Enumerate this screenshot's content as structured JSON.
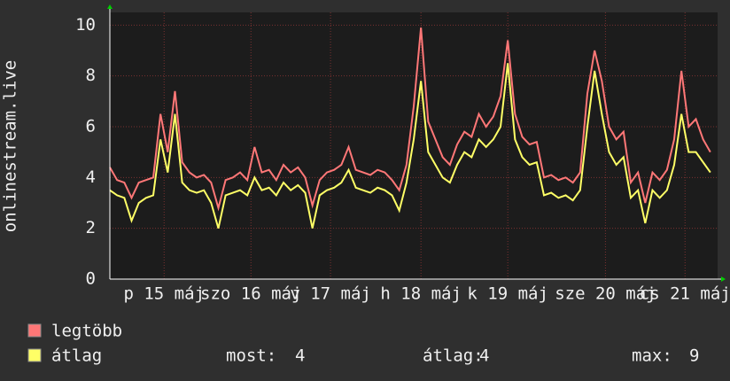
{
  "chart_data": {
    "type": "line",
    "y_label": "onlinestream.live",
    "x": [
      0,
      2,
      4,
      6,
      8,
      10,
      12,
      14,
      16,
      18,
      20,
      22,
      24,
      26,
      28,
      30,
      32,
      34,
      36,
      38,
      40,
      42,
      44,
      46,
      48,
      50,
      52,
      54,
      56,
      58,
      60,
      62,
      64,
      66,
      68,
      70,
      72,
      74,
      76,
      78,
      80,
      82,
      84,
      86,
      88,
      90,
      92,
      94,
      96,
      98,
      100,
      102,
      104,
      106,
      108,
      110,
      112,
      114,
      116,
      118,
      120,
      122,
      124,
      126,
      128,
      130,
      132,
      134,
      136,
      138,
      140,
      142,
      144,
      146,
      148,
      150,
      152,
      154,
      156,
      158,
      160,
      162,
      164,
      166
    ],
    "xlim": [
      0,
      168
    ],
    "xticks": [
      {
        "value": 15,
        "label": "p 15 máj"
      },
      {
        "value": 39,
        "label": "szo 16 máj"
      },
      {
        "value": 61,
        "label": "v 17 máj"
      },
      {
        "value": 86,
        "label": "h 18 máj"
      },
      {
        "value": 110,
        "label": "k 19 máj"
      },
      {
        "value": 137,
        "label": "sze 20 máj"
      },
      {
        "value": 159,
        "label": "cs 21 máj"
      }
    ],
    "ylim": [
      0,
      10.5
    ],
    "yticks": [
      0,
      2,
      4,
      6,
      8,
      10
    ],
    "grid": true,
    "series": [
      {
        "name": "legtöbb",
        "color": "#ff7777",
        "values": [
          4.4,
          3.9,
          3.8,
          3.2,
          3.8,
          3.9,
          4.0,
          6.5,
          5.0,
          7.4,
          4.6,
          4.2,
          4.0,
          4.1,
          3.8,
          2.8,
          3.9,
          4.0,
          4.2,
          3.9,
          5.2,
          4.2,
          4.3,
          3.9,
          4.5,
          4.2,
          4.4,
          4.0,
          2.9,
          3.9,
          4.2,
          4.3,
          4.5,
          5.2,
          4.3,
          4.2,
          4.1,
          4.3,
          4.2,
          3.9,
          3.5,
          4.5,
          6.8,
          9.9,
          6.2,
          5.5,
          4.8,
          4.5,
          5.3,
          5.8,
          5.6,
          6.5,
          6.0,
          6.4,
          7.2,
          9.4,
          6.5,
          5.6,
          5.3,
          5.4,
          4.0,
          4.1,
          3.9,
          4.0,
          3.8,
          4.2,
          7.3,
          9.0,
          7.8,
          6.0,
          5.5,
          5.8,
          3.8,
          4.2,
          3.0,
          4.2,
          3.9,
          4.3,
          5.5,
          8.2,
          6.0,
          6.3,
          5.5,
          5.0
        ]
      },
      {
        "name": "átlag",
        "color": "#ffff66",
        "values": [
          3.5,
          3.3,
          3.2,
          2.3,
          3.0,
          3.2,
          3.3,
          5.5,
          4.2,
          6.5,
          3.8,
          3.5,
          3.4,
          3.5,
          3.0,
          2.0,
          3.3,
          3.4,
          3.5,
          3.3,
          4.0,
          3.5,
          3.6,
          3.3,
          3.8,
          3.5,
          3.7,
          3.4,
          2.0,
          3.3,
          3.5,
          3.6,
          3.8,
          4.3,
          3.6,
          3.5,
          3.4,
          3.6,
          3.5,
          3.3,
          2.7,
          3.8,
          5.5,
          7.8,
          5.0,
          4.5,
          4.0,
          3.8,
          4.5,
          5.0,
          4.8,
          5.5,
          5.2,
          5.5,
          6.0,
          8.5,
          5.5,
          4.8,
          4.5,
          4.6,
          3.3,
          3.4,
          3.2,
          3.3,
          3.1,
          3.5,
          6.0,
          8.2,
          6.5,
          5.0,
          4.5,
          4.8,
          3.2,
          3.5,
          2.2,
          3.5,
          3.2,
          3.5,
          4.5,
          6.5,
          5.0,
          5.0,
          4.6,
          4.2
        ]
      }
    ],
    "stats": [
      {
        "label": "most:",
        "value": 4
      },
      {
        "label": "átlag:",
        "value": 4
      },
      {
        "label": "max:",
        "value": 9
      }
    ]
  }
}
